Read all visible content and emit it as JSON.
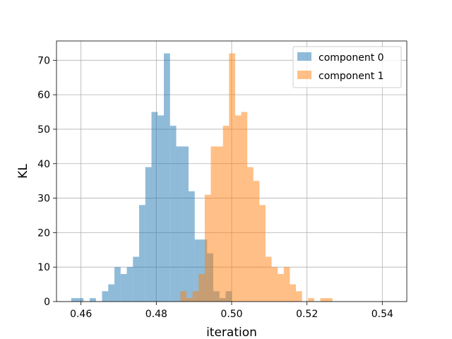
{
  "chart_data": {
    "type": "histogram",
    "title": "",
    "xlabel": "iteration",
    "ylabel": "KL",
    "xlim": [
      0.4535,
      0.5465
    ],
    "ylim": [
      0,
      75.6
    ],
    "xticks": [
      0.46,
      0.48,
      0.5,
      0.52,
      0.54
    ],
    "xtick_labels": [
      "0.46",
      "0.48",
      "0.50",
      "0.52",
      "0.54"
    ],
    "yticks": [
      0,
      10,
      20,
      30,
      40,
      50,
      60,
      70
    ],
    "ytick_labels": [
      "0",
      "10",
      "20",
      "30",
      "40",
      "50",
      "60",
      "70"
    ],
    "grid": true,
    "legend_placement": "top-right",
    "alpha": 0.5,
    "series": [
      {
        "name": "component 0",
        "color": "#1f77b4",
        "bin_start": 0.4574,
        "bin_width": 0.00164,
        "counts": [
          1,
          1,
          0,
          1,
          0,
          3,
          5,
          10,
          8,
          10,
          13,
          28,
          39,
          55,
          54,
          72,
          51,
          45,
          45,
          32,
          18,
          18,
          14,
          3,
          1,
          3
        ]
      },
      {
        "name": "component 1",
        "color": "#ff7f0e",
        "bin_start": 0.4864,
        "bin_width": 0.001614,
        "counts": [
          3,
          1,
          3,
          8,
          31,
          45,
          45,
          51,
          72,
          54,
          55,
          39,
          35,
          28,
          13,
          10,
          8,
          10,
          5,
          3,
          0,
          1,
          0,
          1,
          1
        ]
      }
    ]
  }
}
